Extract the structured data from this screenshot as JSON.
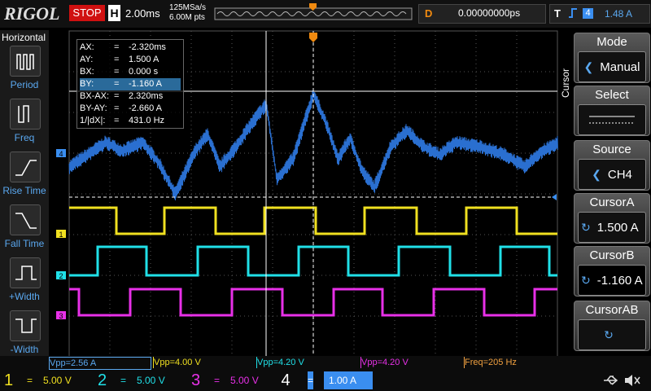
{
  "header": {
    "brand": "RIGOL",
    "status": "STOP",
    "timebase_label": "H",
    "timebase": "2.00ms",
    "sample_rate": "125MSa/s",
    "memory_depth": "6.00M pts",
    "delay_label": "D",
    "delay": "0.00000000ps",
    "trigger_label": "T",
    "trigger_source": "4",
    "trigger_level": "1.48 A"
  },
  "left_menu": {
    "title": "Horizontal",
    "items": [
      "Period",
      "Freq",
      "Rise Time",
      "Fall Time",
      "+Width",
      "-Width"
    ]
  },
  "cursor_readout": {
    "rows": [
      [
        "AX:",
        "=",
        "-2.320ms"
      ],
      [
        "AY:",
        "=",
        "1.500 A"
      ],
      [
        "BX:",
        "=",
        "0.000 s"
      ],
      [
        "BY:",
        "=",
        "-1.160 A"
      ],
      [
        "BX-AX:",
        "=",
        "2.320ms"
      ],
      [
        "BY-AY:",
        "=",
        "-2.660 A"
      ],
      [
        "1/|dX|:",
        "=",
        "431.0 Hz"
      ]
    ]
  },
  "right_menu": {
    "title": "Cursor",
    "items": [
      {
        "label": "Mode",
        "value": "Manual"
      },
      {
        "label": "Select"
      },
      {
        "label": "Source",
        "value": "CH4"
      },
      {
        "label": "CursorA",
        "value": "1.500 A"
      },
      {
        "label": "CursorB",
        "value": "-1.160 A"
      },
      {
        "label": "CursorAB"
      }
    ]
  },
  "measurements": [
    "Vpp=2.56 A",
    "Vpp=4.00 V",
    "Vpp=4.20 V",
    "Vpp=4.20 V",
    "Freq=205 Hz"
  ],
  "channels": [
    {
      "number": "1",
      "coupling": "=",
      "scale": "5.00 V"
    },
    {
      "number": "2",
      "coupling": "=",
      "scale": "5.00 V"
    },
    {
      "number": "3",
      "coupling": "=",
      "scale": "5.00 V"
    },
    {
      "number": "4",
      "coupling": "=",
      "scale": "1.00 A"
    }
  ]
}
